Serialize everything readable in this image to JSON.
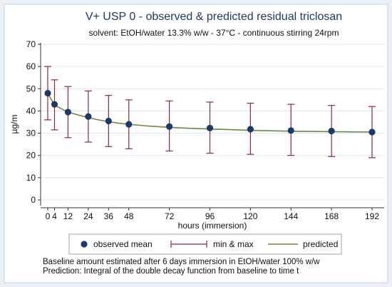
{
  "chart_data": {
    "type": "scatter",
    "title": "V+ USP 0 - observed & predicted residual triclosan",
    "subtitle": "solvent: EtOH/water 13.3% w/w - 37°C - continuous stirring 24rpm",
    "xlabel": "hours (immersion)",
    "ylabel": "µg/m",
    "xlim": [
      0,
      192
    ],
    "ylim": [
      0,
      70
    ],
    "x_ticks": [
      0,
      4,
      12,
      24,
      36,
      48,
      72,
      96,
      120,
      144,
      168,
      192
    ],
    "y_ticks": [
      0,
      10,
      20,
      30,
      40,
      50,
      60,
      70
    ],
    "grid": true,
    "legend_position": "bottom",
    "legend": [
      {
        "label": "observed mean",
        "marker": "circle"
      },
      {
        "label": "min & max",
        "marker": "error-bar"
      },
      {
        "label": "predicted",
        "marker": "line"
      }
    ],
    "series": [
      {
        "name": "observed mean",
        "x": [
          0,
          4,
          12,
          24,
          36,
          48,
          72,
          96,
          120,
          144,
          168,
          192
        ],
        "y": [
          48,
          43,
          39.5,
          37.5,
          35.5,
          34,
          33,
          32.3,
          31.8,
          31.2,
          31,
          30.5
        ]
      },
      {
        "name": "min & max",
        "x": [
          0,
          4,
          12,
          24,
          36,
          48,
          72,
          96,
          120,
          144,
          168,
          192
        ],
        "min": [
          36,
          31.5,
          28,
          26,
          24,
          23,
          22,
          21,
          20.5,
          20,
          19.5,
          19
        ],
        "max": [
          60,
          54,
          51,
          49,
          47,
          45,
          44.5,
          44,
          43.5,
          43,
          42.5,
          42
        ]
      },
      {
        "name": "predicted",
        "type": "line",
        "x": [
          0,
          4,
          8,
          12,
          18,
          24,
          30,
          36,
          42,
          48,
          60,
          72,
          84,
          96,
          108,
          120,
          132,
          144,
          156,
          168,
          180,
          192
        ],
        "y": [
          48,
          42.6,
          41.0,
          39.5,
          38.2,
          37.0,
          36.0,
          35.2,
          34.5,
          34.0,
          33.2,
          32.6,
          32.2,
          31.9,
          31.6,
          31.3,
          31.1,
          30.9,
          30.8,
          30.7,
          30.6,
          30.5
        ]
      }
    ],
    "annotations": [
      "Baseline amount estimated after 6 days immersion in EtOH/water 100% w/w",
      "Prediction: Integral of the double decay function from baseline to time t"
    ]
  },
  "colors": {
    "frame_bg": "#ffffff",
    "plot_bg": "#ffffff",
    "grid": "#dfe5ec",
    "marker": "#1a3a6b",
    "error_bar": "#8b2a3a",
    "predicted_line": "#6a8a3a",
    "title": "#1f3a66"
  }
}
